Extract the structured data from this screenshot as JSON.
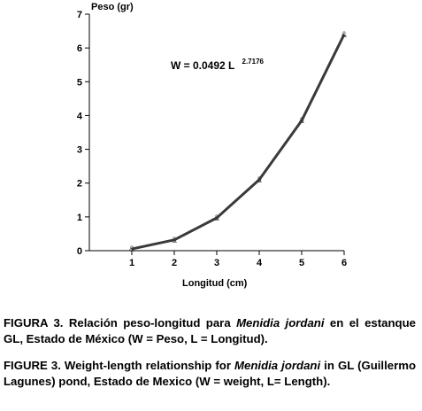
{
  "chart_data": {
    "type": "line",
    "ylabel": "Peso (gr)",
    "xlabel": "Longitud (cm)",
    "xlim": [
      0,
      6
    ],
    "ylim": [
      0,
      7
    ],
    "x_ticks": [
      1,
      2,
      3,
      4,
      5,
      6
    ],
    "y_ticks": [
      0,
      1,
      2,
      3,
      4,
      5,
      6,
      7
    ],
    "grid": false,
    "equation": {
      "base": "W = 0.0492 L",
      "exponent": "2.7176"
    },
    "series": [
      {
        "x": [
          1,
          2,
          3,
          4,
          5,
          6
        ],
        "y": [
          0.05,
          0.32,
          0.97,
          2.1,
          3.85,
          6.4
        ],
        "marker": "&",
        "color": "#3a3a3a"
      }
    ]
  },
  "captions": {
    "es": {
      "label": "FIGURA 3.",
      "text_before": " Relación peso-longitud para ",
      "species": "Menidia jordani",
      "text_after": " en el estanque GL, Estado de México (W = Peso, L = Longitud)."
    },
    "en": {
      "label": "FIGURE 3.",
      "text_before": " Weight-length relationship for ",
      "species": "Menidia jordani",
      "text_after": " in GL (Guillermo Lagunes) pond, Estado de Mexico (W = weight, L= Length)."
    }
  }
}
